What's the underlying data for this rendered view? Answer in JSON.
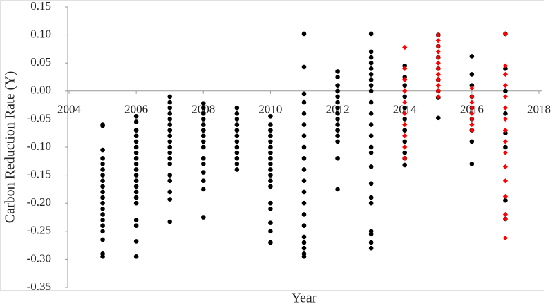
{
  "chart_data": {
    "type": "scatter",
    "xlabel": "Year",
    "ylabel": "Carbon Reduction Rate (Y)",
    "xlim": [
      2004,
      2018
    ],
    "xticks": [
      2004,
      2006,
      2008,
      2010,
      2012,
      2014,
      2016,
      2018
    ],
    "ylim": [
      -0.35,
      0.15
    ],
    "yticks": [
      0.15,
      {
        "value": 0.1,
        "label": "0.10"
      },
      0.05,
      {
        "value": 0,
        "label": "0.00"
      },
      -0.05,
      {
        "value": -0.1,
        "label": "-0.10"
      },
      -0.15,
      {
        "value": -0.2,
        "label": "-0.20"
      },
      -0.25,
      {
        "value": -0.3,
        "label": "-0.30"
      },
      -0.35
    ],
    "grid": false,
    "series": [
      {
        "color": "#000000",
        "marker": "circle",
        "x": [
          2005,
          2005,
          2005,
          2005,
          2005,
          2005,
          2005,
          2005,
          2005,
          2005,
          2005,
          2005,
          2005,
          2005,
          2005,
          2005,
          2005,
          2005,
          2005,
          2005
        ],
        "values": [
          -0.06,
          -0.062,
          -0.105,
          -0.12,
          -0.13,
          -0.14,
          -0.15,
          -0.16,
          -0.17,
          -0.18,
          -0.19,
          -0.2,
          -0.21,
          -0.22,
          -0.23,
          -0.24,
          -0.25,
          -0.265,
          -0.29,
          -0.295
        ]
      },
      {
        "color": "#000000",
        "marker": "circle",
        "x": [
          2006,
          2006,
          2006,
          2006,
          2006,
          2006,
          2006,
          2006,
          2006,
          2006,
          2006,
          2006,
          2006,
          2006,
          2006,
          2006,
          2006,
          2006,
          2006,
          2006
        ],
        "values": [
          -0.045,
          -0.055,
          -0.07,
          -0.08,
          -0.09,
          -0.1,
          -0.11,
          -0.12,
          -0.13,
          -0.14,
          -0.15,
          -0.16,
          -0.17,
          -0.18,
          -0.19,
          -0.2,
          -0.23,
          -0.24,
          -0.268,
          -0.295
        ]
      },
      {
        "color": "#000000",
        "marker": "circle",
        "x": [
          2007,
          2007,
          2007,
          2007,
          2007,
          2007,
          2007,
          2007,
          2007,
          2007,
          2007,
          2007,
          2007,
          2007,
          2007,
          2007,
          2007,
          2007
        ],
        "values": [
          -0.01,
          -0.02,
          -0.03,
          -0.04,
          -0.05,
          -0.06,
          -0.07,
          -0.08,
          -0.09,
          -0.1,
          -0.11,
          -0.12,
          -0.13,
          -0.15,
          -0.16,
          -0.18,
          -0.193,
          -0.233
        ]
      },
      {
        "color": "#000000",
        "marker": "circle",
        "x": [
          2008,
          2008,
          2008,
          2008,
          2008,
          2008,
          2008,
          2008,
          2008,
          2008,
          2008,
          2008,
          2008,
          2008,
          2008
        ],
        "values": [
          -0.022,
          -0.03,
          -0.04,
          -0.05,
          -0.06,
          -0.07,
          -0.08,
          -0.09,
          -0.1,
          -0.12,
          -0.13,
          -0.145,
          -0.16,
          -0.175,
          -0.225
        ]
      },
      {
        "color": "#000000",
        "marker": "circle",
        "x": [
          2009,
          2009,
          2009,
          2009,
          2009,
          2009,
          2009,
          2009,
          2009,
          2009,
          2009,
          2009
        ],
        "values": [
          -0.03,
          -0.04,
          -0.05,
          -0.06,
          -0.07,
          -0.08,
          -0.09,
          -0.1,
          -0.11,
          -0.12,
          -0.13,
          -0.14
        ]
      },
      {
        "color": "#000000",
        "marker": "circle",
        "x": [
          2010,
          2010,
          2010,
          2010,
          2010,
          2010,
          2010,
          2010,
          2010,
          2010,
          2010,
          2010,
          2010,
          2010,
          2010,
          2010,
          2010,
          2010
        ],
        "values": [
          -0.045,
          -0.06,
          -0.07,
          -0.08,
          -0.09,
          -0.1,
          -0.11,
          -0.12,
          -0.13,
          -0.14,
          -0.15,
          -0.16,
          -0.17,
          -0.2,
          -0.21,
          -0.235,
          -0.25,
          -0.27
        ]
      },
      {
        "color": "#000000",
        "marker": "circle",
        "x": [
          2011,
          2011,
          2011,
          2011,
          2011,
          2011,
          2011,
          2011,
          2011,
          2011,
          2011,
          2011,
          2011,
          2011,
          2011,
          2011,
          2011,
          2011,
          2011,
          2011
        ],
        "values": [
          0.102,
          0.043,
          -0.005,
          -0.02,
          -0.04,
          -0.06,
          -0.08,
          -0.1,
          -0.12,
          -0.14,
          -0.16,
          -0.18,
          -0.2,
          -0.22,
          -0.24,
          -0.26,
          -0.27,
          -0.28,
          -0.29,
          -0.295
        ]
      },
      {
        "color": "#000000",
        "marker": "circle",
        "x": [
          2012,
          2012,
          2012,
          2012,
          2012,
          2012,
          2012,
          2012,
          2012,
          2012,
          2012,
          2012,
          2012,
          2012,
          2012
        ],
        "values": [
          0.035,
          0.025,
          0.01,
          0,
          -0.01,
          -0.02,
          -0.03,
          -0.04,
          -0.05,
          -0.06,
          -0.07,
          -0.08,
          -0.09,
          -0.12,
          -0.175
        ]
      },
      {
        "color": "#000000",
        "marker": "circle",
        "x": [
          2013,
          2013,
          2013,
          2013,
          2013,
          2013,
          2013,
          2013,
          2013,
          2013,
          2013,
          2013,
          2013,
          2013,
          2013,
          2013,
          2013,
          2013,
          2013,
          2013,
          2013,
          2013,
          2013
        ],
        "values": [
          0.102,
          0.07,
          0.06,
          0.05,
          0.04,
          0.03,
          0.02,
          0.01,
          0,
          -0.02,
          -0.04,
          -0.06,
          -0.08,
          -0.1,
          -0.11,
          -0.135,
          -0.165,
          -0.19,
          -0.2,
          -0.25,
          -0.255,
          -0.27,
          -0.28
        ]
      },
      {
        "color": "#000000",
        "marker": "circle",
        "x": [
          2014,
          2014,
          2014,
          2014,
          2014,
          2014,
          2014,
          2014,
          2014,
          2014,
          2014
        ],
        "values": [
          0.045,
          0.025,
          0.01,
          -0.01,
          -0.03,
          -0.05,
          -0.07,
          -0.09,
          -0.11,
          -0.12,
          -0.132
        ]
      },
      {
        "color": "#000000",
        "marker": "circle",
        "x": [
          2015,
          2015,
          2015,
          2015,
          2015,
          2015,
          2015,
          2015
        ],
        "values": [
          0.1,
          0.08,
          0.06,
          0.04,
          0.02,
          0,
          -0.012,
          -0.048
        ]
      },
      {
        "color": "#000000",
        "marker": "circle",
        "x": [
          2016,
          2016,
          2016,
          2016,
          2016,
          2016,
          2016,
          2016,
          2016
        ],
        "values": [
          0.062,
          0.03,
          0.01,
          -0.01,
          -0.03,
          -0.05,
          -0.07,
          -0.09,
          -0.13
        ]
      },
      {
        "color": "#000000",
        "marker": "circle",
        "x": [
          2017,
          2017,
          2017,
          2017,
          2017,
          2017,
          2017,
          2017
        ],
        "values": [
          0.102,
          0.04,
          0,
          -0.04,
          -0.075,
          -0.1,
          -0.195,
          -0.228
        ]
      },
      {
        "color": "#ff0000",
        "marker": "diamond",
        "x": [
          2014,
          2014,
          2014,
          2014,
          2014,
          2014,
          2014,
          2014,
          2014,
          2014
        ],
        "values": [
          0.078,
          0.04,
          0.02,
          0,
          -0.02,
          -0.04,
          -0.06,
          -0.08,
          -0.1,
          -0.12
        ]
      },
      {
        "color": "#ff0000",
        "marker": "diamond",
        "x": [
          2015,
          2015,
          2015,
          2015,
          2015,
          2015,
          2015,
          2015,
          2015,
          2015,
          2015,
          2015
        ],
        "values": [
          0.1,
          0.09,
          0.08,
          0.07,
          0.06,
          0.05,
          0.04,
          0.03,
          0.02,
          0.01,
          0,
          -0.01
        ]
      },
      {
        "color": "#ff0000",
        "marker": "diamond",
        "x": [
          2016,
          2016,
          2016,
          2016,
          2016,
          2016,
          2016,
          2016
        ],
        "values": [
          0.005,
          -0.01,
          -0.02,
          -0.03,
          -0.04,
          -0.05,
          -0.06,
          -0.07
        ]
      },
      {
        "color": "#ff0000",
        "marker": "diamond",
        "x": [
          2017,
          2017,
          2017,
          2017,
          2017,
          2017,
          2017,
          2017,
          2017,
          2017,
          2017,
          2017,
          2017,
          2017,
          2017,
          2017
        ],
        "values": [
          0.102,
          0.045,
          0.03,
          0.01,
          -0.01,
          -0.03,
          -0.05,
          -0.07,
          -0.09,
          -0.11,
          -0.135,
          -0.16,
          -0.188,
          -0.22,
          -0.228,
          -0.262
        ]
      }
    ]
  }
}
